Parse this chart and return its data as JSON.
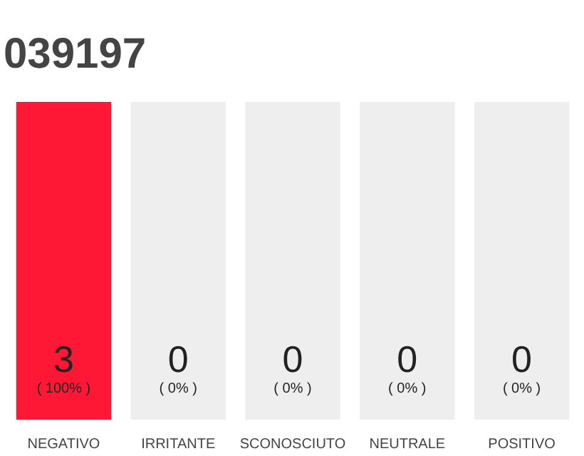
{
  "chart_data": {
    "type": "bar",
    "title": "039197",
    "categories": [
      "NEGATIVO",
      "IRRITANTE",
      "SCONOSCIUTO",
      "NEUTRALE",
      "POSITIVO"
    ],
    "series": [
      {
        "color": "#ff1736",
        "values": [
          3,
          0,
          0,
          0,
          0
        ],
        "value_labels": [
          "3\n( 100% )",
          "0\n( 0% )",
          "0\n( 0% )",
          "0\n( 0% )",
          "0\n( 0% )"
        ]
      },
      {
        "color": "#eeeeee",
        "values": [
          0,
          3,
          3,
          3,
          3
        ]
      }
    ],
    "grid": false
  }
}
